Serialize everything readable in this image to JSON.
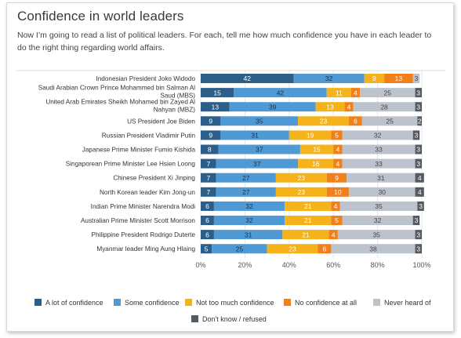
{
  "title": "Confidence in world leaders",
  "subtitle": "Now I’m going to read a list of political leaders. For each, tell me how much confidence you have in each leader to do the right thing regarding world affairs.",
  "chart_data": {
    "type": "bar",
    "stacked": true,
    "orientation": "horizontal",
    "xlim": [
      0,
      100
    ],
    "xticks": [
      "0%",
      "20%",
      "40%",
      "60%",
      "80%",
      "100%"
    ],
    "grid": true,
    "legend_position": "bottom",
    "categories": [
      [
        "Indonesian President Joko Widodo"
      ],
      [
        "Saudi Arabian Crown Prince Mohammed bin Salman Al",
        "Saud (MBS)"
      ],
      [
        "United Arab Emirates Sheikh Mohamed bin Zayed Al",
        "Nahyan (MBZ)"
      ],
      [
        "US President Joe Biden"
      ],
      [
        "Russian President Vladimir Putin"
      ],
      [
        "Japanese Prime Minister Fumio Kishida"
      ],
      [
        "Singaporean Prime Minister Lee Hsien Loong"
      ],
      [
        "Chinese President Xi Jinping"
      ],
      [
        "North Korean leader Kim Jong-un"
      ],
      [
        "Indian Prime Minister Narendra Modi"
      ],
      [
        "Australian Prime Minister Scott Morrison"
      ],
      [
        "Philippine President Rodrigo Duterte"
      ],
      [
        "Myanmar leader Ming Aung Hlaing"
      ]
    ],
    "series": [
      {
        "name": "A lot of confidence",
        "color": "#2b5f8a",
        "label_color": "#ffffff",
        "values": [
          42,
          15,
          13,
          9,
          9,
          8,
          7,
          7,
          7,
          6,
          6,
          6,
          5
        ]
      },
      {
        "name": "Some confidence",
        "color": "#4f9ad4",
        "label_color": "#1b2f45",
        "values": [
          32,
          42,
          39,
          35,
          31,
          37,
          37,
          27,
          27,
          32,
          32,
          31,
          25
        ]
      },
      {
        "name": "Not too much confidence",
        "color": "#f5b21b",
        "label_color": "#ffffff",
        "values": [
          9,
          11,
          13,
          23,
          19,
          15,
          16,
          23,
          23,
          21,
          21,
          21,
          23
        ]
      },
      {
        "name": "No confidence at all",
        "color": "#f37f18",
        "label_color": "#ffffff",
        "values": [
          13,
          4,
          4,
          6,
          5,
          4,
          4,
          9,
          10,
          4,
          5,
          4,
          6
        ]
      },
      {
        "name": "Never heard of",
        "color": "#bcc3cc",
        "label_color": "#444444",
        "values": [
          3,
          25,
          28,
          25,
          32,
          33,
          33,
          31,
          30,
          35,
          32,
          35,
          38
        ]
      },
      {
        "name": "Don't know / refused",
        "color": "#555b61",
        "label_color": "#ffffff",
        "values": [
          null,
          3,
          3,
          2,
          3,
          3,
          3,
          4,
          4,
          3,
          3,
          3,
          3
        ]
      }
    ]
  }
}
